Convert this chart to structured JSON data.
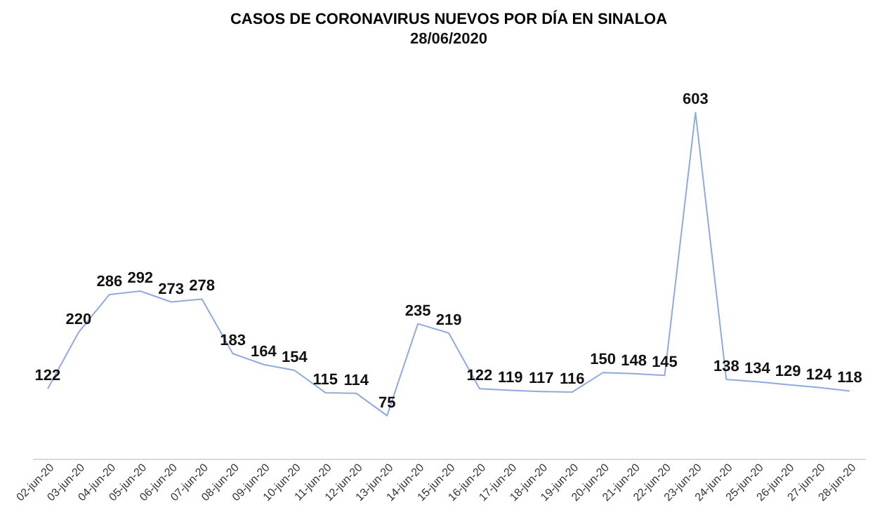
{
  "chart_data": {
    "type": "line",
    "title": "CASOS DE CORONAVIRUS NUEVOS POR DÍA EN SINALOA",
    "subtitle": "28/06/2020",
    "categories": [
      "02-jun-20",
      "03-jun-20",
      "04-jun-20",
      "05-jun-20",
      "06-jun-20",
      "07-jun-20",
      "08-jun-20",
      "09-jun-20",
      "10-jun-20",
      "11-jun-20",
      "12-jun-20",
      "13-jun-20",
      "14-jun-20",
      "15-jun-20",
      "16-jun-20",
      "17-jun-20",
      "18-jun-20",
      "19-jun-20",
      "20-jun-20",
      "21-jun-20",
      "22-jun-20",
      "23-jun-20",
      "24-jun-20",
      "25-jun-20",
      "26-jun-20",
      "27-jun-20",
      "28-jun-20"
    ],
    "series": [
      {
        "color": "#8faadc",
        "values": [
          122,
          220,
          286,
          292,
          273,
          278,
          183,
          164,
          154,
          115,
          114,
          75,
          235,
          219,
          122,
          119,
          117,
          116,
          150,
          148,
          145,
          603,
          138,
          134,
          129,
          124,
          118
        ]
      }
    ],
    "data_labels": true,
    "tick_labels": "x",
    "grid": false,
    "legend": false,
    "marker": "none"
  }
}
